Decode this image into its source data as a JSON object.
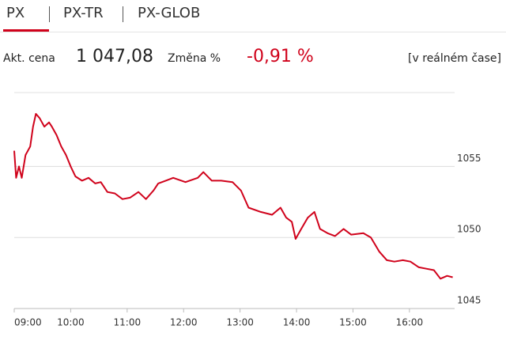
{
  "tabs": [
    "PX",
    "PX-TR",
    "PX-GLOB"
  ],
  "quote": {
    "price_label": "Akt. cena",
    "price": "1 047,08",
    "change_label": "Změna %",
    "change": "-0,91 %",
    "realtime": "[v reálném čase]"
  },
  "chart_data": {
    "type": "line",
    "x": [
      "09:00",
      "09:02",
      "09:05",
      "09:08",
      "09:12",
      "09:17",
      "09:20",
      "09:23",
      "09:27",
      "09:32",
      "09:37",
      "09:40",
      "09:45",
      "09:50",
      "09:55",
      "10:00",
      "10:05",
      "10:12",
      "10:19",
      "10:26",
      "10:32",
      "10:39",
      "10:47",
      "10:55",
      "11:03",
      "11:12",
      "11:20",
      "11:28",
      "11:33",
      "11:41",
      "11:49",
      "12:02",
      "12:15",
      "12:21",
      "12:30",
      "12:40",
      "12:52",
      "13:01",
      "13:09",
      "13:22",
      "13:34",
      "13:43",
      "13:49",
      "13:55",
      "13:59",
      "14:05",
      "14:12",
      "14:19",
      "14:25",
      "14:33",
      "14:41",
      "14:50",
      "14:58",
      "15:11",
      "15:19",
      "15:28",
      "15:36",
      "15:44",
      "15:53",
      "16:01",
      "16:10",
      "16:18",
      "16:26",
      "16:33",
      "16:40",
      "16:46"
    ],
    "series": [
      {
        "name": "PX",
        "color": "#d0021b",
        "values": [
          1056.1,
          1054.2,
          1055.0,
          1054.2,
          1055.8,
          1056.4,
          1057.8,
          1058.7,
          1058.4,
          1057.8,
          1058.1,
          1057.8,
          1057.2,
          1056.4,
          1055.8,
          1055.0,
          1054.3,
          1054.0,
          1054.2,
          1053.8,
          1053.9,
          1053.2,
          1053.1,
          1052.7,
          1052.8,
          1053.2,
          1052.7,
          1053.3,
          1053.8,
          1054.0,
          1054.2,
          1053.9,
          1054.2,
          1054.6,
          1054.0,
          1054.0,
          1053.9,
          1053.3,
          1052.1,
          1051.8,
          1051.6,
          1052.1,
          1051.4,
          1051.1,
          1049.9,
          1050.6,
          1051.4,
          1051.8,
          1050.6,
          1050.3,
          1050.1,
          1050.6,
          1050.2,
          1050.3,
          1050.0,
          1049.0,
          1048.4,
          1048.3,
          1048.4,
          1048.3,
          1047.9,
          1047.8,
          1047.7,
          1047.1,
          1047.3,
          1047.2
        ]
      }
    ],
    "xlim": [
      "09:00",
      "16:48"
    ],
    "xticks": [
      "09:00",
      "10:00",
      "11:00",
      "12:00",
      "13:00",
      "14:00",
      "15:00",
      "16:00"
    ],
    "ylim": [
      1045,
      1060.2
    ],
    "yticks": [
      1045,
      1050,
      1055
    ],
    "grid": true
  }
}
